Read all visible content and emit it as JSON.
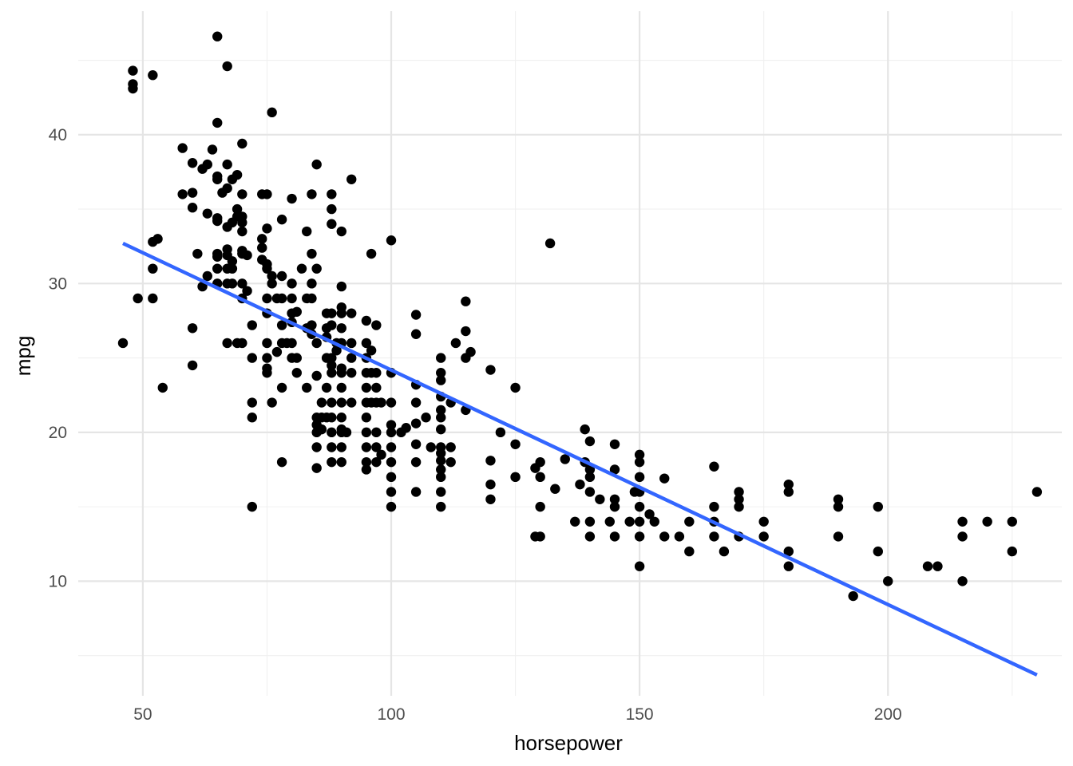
{
  "chart_data": {
    "type": "scatter",
    "xlabel": "horsepower",
    "ylabel": "mpg",
    "xlim": [
      37,
      235
    ],
    "ylim": [
      2.3,
      48.3
    ],
    "x_ticks": [
      50,
      100,
      150,
      200
    ],
    "y_ticks": [
      10,
      20,
      30,
      40
    ],
    "x_tick_labels": [
      "50",
      "100",
      "150",
      "200"
    ],
    "y_tick_labels": [
      "10",
      "20",
      "30",
      "40"
    ],
    "grid": true,
    "legend": "none",
    "point_color": "#000000",
    "line_color": "#3366ff",
    "trend_line": {
      "x": [
        46,
        230
      ],
      "y": [
        32.7,
        3.7
      ]
    },
    "points": [
      [
        46,
        26
      ],
      [
        48,
        44.3
      ],
      [
        48,
        43.4
      ],
      [
        48,
        43.1
      ],
      [
        49,
        29
      ],
      [
        52,
        44
      ],
      [
        52,
        32.8
      ],
      [
        52,
        31
      ],
      [
        52,
        29
      ],
      [
        53,
        33
      ],
      [
        54,
        23
      ],
      [
        58,
        39.1
      ],
      [
        58,
        36
      ],
      [
        60,
        38.1
      ],
      [
        60,
        36.1
      ],
      [
        60,
        35.1
      ],
      [
        60,
        27
      ],
      [
        60,
        24.5
      ],
      [
        61,
        32
      ],
      [
        62,
        37.7
      ],
      [
        62,
        29.8
      ],
      [
        63,
        38
      ],
      [
        63,
        34.7
      ],
      [
        63,
        30.5
      ],
      [
        64,
        39
      ],
      [
        65,
        46.6
      ],
      [
        65,
        40.8
      ],
      [
        65,
        37.2
      ],
      [
        65,
        37
      ],
      [
        65,
        34.4
      ],
      [
        65,
        34.2
      ],
      [
        65,
        32
      ],
      [
        65,
        31.8
      ],
      [
        65,
        31
      ],
      [
        65,
        30
      ],
      [
        66,
        36.1
      ],
      [
        67,
        44.6
      ],
      [
        67,
        38
      ],
      [
        67,
        36.4
      ],
      [
        67,
        33.8
      ],
      [
        67,
        32.3
      ],
      [
        67,
        31.9
      ],
      [
        67,
        31
      ],
      [
        67,
        30
      ],
      [
        67,
        26
      ],
      [
        68,
        37
      ],
      [
        68,
        34.1
      ],
      [
        68,
        31.5
      ],
      [
        68,
        31
      ],
      [
        68,
        30
      ],
      [
        69,
        37.3
      ],
      [
        69,
        35
      ],
      [
        69,
        34.5
      ],
      [
        69,
        26
      ],
      [
        70,
        39.4
      ],
      [
        70,
        36
      ],
      [
        70,
        34.5
      ],
      [
        70,
        34.1
      ],
      [
        70,
        33.5
      ],
      [
        70,
        32.2
      ],
      [
        70,
        32
      ],
      [
        70,
        30
      ],
      [
        70,
        29
      ],
      [
        70,
        26
      ],
      [
        71,
        29.5
      ],
      [
        71,
        31.9
      ],
      [
        72,
        27.2
      ],
      [
        72,
        25
      ],
      [
        72,
        22
      ],
      [
        72,
        21
      ],
      [
        72,
        15
      ],
      [
        74,
        33
      ],
      [
        74,
        36
      ],
      [
        74,
        31.6
      ],
      [
        74,
        32.4
      ],
      [
        75,
        36
      ],
      [
        75,
        33.7
      ],
      [
        75,
        31.3
      ],
      [
        75,
        31
      ],
      [
        75,
        29
      ],
      [
        75,
        28
      ],
      [
        75,
        26
      ],
      [
        75,
        25
      ],
      [
        75,
        24
      ],
      [
        75,
        24.3
      ],
      [
        76,
        30.5
      ],
      [
        76,
        30
      ],
      [
        76,
        41.5
      ],
      [
        76,
        22
      ],
      [
        77,
        29
      ],
      [
        77,
        25.4
      ],
      [
        78,
        34.3
      ],
      [
        78,
        30.5
      ],
      [
        78,
        29
      ],
      [
        78,
        27.2
      ],
      [
        78,
        26
      ],
      [
        78,
        23
      ],
      [
        78,
        18
      ],
      [
        79,
        26
      ],
      [
        80,
        29
      ],
      [
        80,
        28
      ],
      [
        80,
        26
      ],
      [
        80,
        25
      ],
      [
        80,
        27.4
      ],
      [
        80,
        30
      ],
      [
        80,
        35.7
      ],
      [
        81,
        28.1
      ],
      [
        81,
        24
      ],
      [
        81,
        25
      ],
      [
        82,
        31
      ],
      [
        83,
        33.5
      ],
      [
        83,
        29
      ],
      [
        83,
        27
      ],
      [
        83,
        23
      ],
      [
        84,
        36
      ],
      [
        84,
        32
      ],
      [
        84,
        30
      ],
      [
        84,
        29
      ],
      [
        84,
        27.2
      ],
      [
        84,
        26.6
      ],
      [
        85,
        38
      ],
      [
        85,
        31
      ],
      [
        85,
        26
      ],
      [
        85,
        23.8
      ],
      [
        85,
        21
      ],
      [
        85,
        20.5
      ],
      [
        85,
        20
      ],
      [
        85,
        19
      ],
      [
        85,
        17.6
      ],
      [
        86,
        22
      ],
      [
        86,
        21
      ],
      [
        86,
        20.2
      ],
      [
        87,
        28
      ],
      [
        87,
        26.4
      ],
      [
        87,
        27
      ],
      [
        87,
        25
      ],
      [
        87,
        23
      ],
      [
        87,
        21
      ],
      [
        88,
        36
      ],
      [
        88,
        35
      ],
      [
        88,
        34
      ],
      [
        88,
        28
      ],
      [
        88,
        27.2
      ],
      [
        88,
        25
      ],
      [
        88,
        24.5
      ],
      [
        88,
        24
      ],
      [
        88,
        22
      ],
      [
        88,
        21
      ],
      [
        88,
        20
      ],
      [
        88,
        19
      ],
      [
        88,
        18
      ],
      [
        89,
        25.5
      ],
      [
        89,
        26
      ],
      [
        90,
        33.5
      ],
      [
        90,
        29.8
      ],
      [
        90,
        28.4
      ],
      [
        90,
        28
      ],
      [
        90,
        27
      ],
      [
        90,
        26
      ],
      [
        90,
        24.3
      ],
      [
        90,
        24
      ],
      [
        90,
        23
      ],
      [
        90,
        22
      ],
      [
        90,
        21
      ],
      [
        90,
        20.2
      ],
      [
        90,
        20
      ],
      [
        90,
        19
      ],
      [
        90,
        18
      ],
      [
        91,
        20
      ],
      [
        92,
        37
      ],
      [
        92,
        28
      ],
      [
        92,
        26
      ],
      [
        92,
        25
      ],
      [
        92,
        24
      ],
      [
        92,
        22
      ],
      [
        95,
        27.5
      ],
      [
        95,
        26
      ],
      [
        95,
        25
      ],
      [
        95,
        24
      ],
      [
        95,
        23
      ],
      [
        95,
        22
      ],
      [
        95,
        21
      ],
      [
        95,
        20
      ],
      [
        95,
        19
      ],
      [
        95,
        18
      ],
      [
        95,
        17.5
      ],
      [
        96,
        32
      ],
      [
        96,
        25.5
      ],
      [
        96,
        24
      ],
      [
        96,
        22
      ],
      [
        97,
        27.2
      ],
      [
        97,
        24
      ],
      [
        97,
        23
      ],
      [
        97,
        22
      ],
      [
        97,
        20
      ],
      [
        97,
        19
      ],
      [
        97,
        18
      ],
      [
        98,
        22
      ],
      [
        98,
        18.5
      ],
      [
        100,
        32.9
      ],
      [
        100,
        24
      ],
      [
        100,
        22
      ],
      [
        100,
        20.5
      ],
      [
        100,
        20
      ],
      [
        100,
        19
      ],
      [
        100,
        18
      ],
      [
        100,
        17
      ],
      [
        100,
        16
      ],
      [
        100,
        15
      ],
      [
        102,
        20
      ],
      [
        103,
        20.3
      ],
      [
        105,
        27.9
      ],
      [
        105,
        26.6
      ],
      [
        105,
        23.2
      ],
      [
        105,
        22
      ],
      [
        105,
        20.6
      ],
      [
        105,
        19.2
      ],
      [
        105,
        18
      ],
      [
        105,
        16
      ],
      [
        107,
        21
      ],
      [
        108,
        19
      ],
      [
        110,
        25
      ],
      [
        110,
        24
      ],
      [
        110,
        23.5
      ],
      [
        110,
        22.4
      ],
      [
        110,
        21.5
      ],
      [
        110,
        21
      ],
      [
        110,
        20.2
      ],
      [
        110,
        19
      ],
      [
        110,
        18.6
      ],
      [
        110,
        18.1
      ],
      [
        110,
        17.5
      ],
      [
        110,
        17
      ],
      [
        110,
        16
      ],
      [
        110,
        15
      ],
      [
        112,
        22
      ],
      [
        112,
        19
      ],
      [
        112,
        18
      ],
      [
        113,
        26
      ],
      [
        115,
        28.8
      ],
      [
        115,
        26.8
      ],
      [
        115,
        25
      ],
      [
        115,
        21.5
      ],
      [
        116,
        25.4
      ],
      [
        120,
        24.2
      ],
      [
        120,
        18.1
      ],
      [
        120,
        16.5
      ],
      [
        120,
        15.5
      ],
      [
        122,
        20
      ],
      [
        125,
        23
      ],
      [
        125,
        19.2
      ],
      [
        125,
        17
      ],
      [
        129,
        17.6
      ],
      [
        129,
        13
      ],
      [
        130,
        18
      ],
      [
        130,
        17
      ],
      [
        130,
        15
      ],
      [
        130,
        13
      ],
      [
        132,
        32.7
      ],
      [
        133,
        16.2
      ],
      [
        135,
        18.2
      ],
      [
        137,
        14
      ],
      [
        138,
        16.5
      ],
      [
        139,
        20.2
      ],
      [
        139,
        18
      ],
      [
        140,
        19.4
      ],
      [
        140,
        17.5
      ],
      [
        140,
        17
      ],
      [
        140,
        16
      ],
      [
        140,
        14
      ],
      [
        140,
        13
      ],
      [
        142,
        15.5
      ],
      [
        144,
        14
      ],
      [
        145,
        19.2
      ],
      [
        145,
        17.5
      ],
      [
        145,
        15.5
      ],
      [
        145,
        15
      ],
      [
        145,
        13
      ],
      [
        148,
        14
      ],
      [
        149,
        16
      ],
      [
        150,
        18.5
      ],
      [
        150,
        18
      ],
      [
        150,
        17
      ],
      [
        150,
        16
      ],
      [
        150,
        15
      ],
      [
        150,
        14
      ],
      [
        150,
        13
      ],
      [
        150,
        11
      ],
      [
        152,
        14.5
      ],
      [
        153,
        14
      ],
      [
        155,
        16.9
      ],
      [
        155,
        13
      ],
      [
        158,
        13
      ],
      [
        160,
        14
      ],
      [
        160,
        12
      ],
      [
        165,
        17.7
      ],
      [
        165,
        15
      ],
      [
        165,
        14
      ],
      [
        165,
        13
      ],
      [
        167,
        12
      ],
      [
        170,
        16
      ],
      [
        170,
        15.5
      ],
      [
        170,
        15
      ],
      [
        170,
        13
      ],
      [
        175,
        14
      ],
      [
        175,
        13
      ],
      [
        180,
        16.5
      ],
      [
        180,
        16
      ],
      [
        180,
        12
      ],
      [
        180,
        11
      ],
      [
        190,
        15.5
      ],
      [
        190,
        15
      ],
      [
        190,
        13
      ],
      [
        193,
        9
      ],
      [
        198,
        15
      ],
      [
        198,
        12
      ],
      [
        200,
        10
      ],
      [
        208,
        11
      ],
      [
        210,
        11
      ],
      [
        215,
        14
      ],
      [
        215,
        13
      ],
      [
        215,
        10
      ],
      [
        220,
        14
      ],
      [
        225,
        14
      ],
      [
        225,
        12
      ],
      [
        230,
        16
      ]
    ]
  }
}
